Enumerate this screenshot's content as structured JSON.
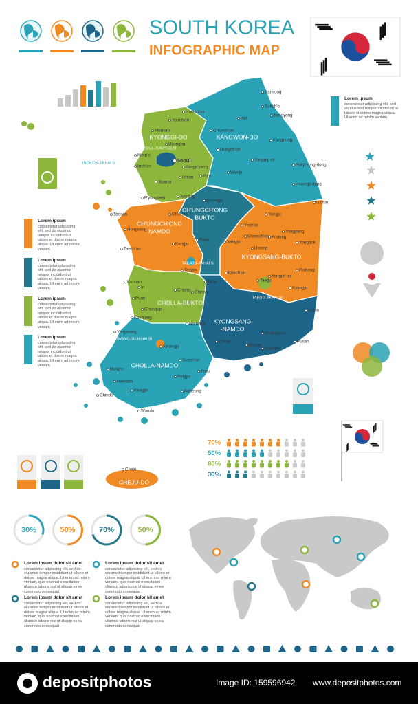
{
  "header": {
    "title": "SOUTH KOREA",
    "subtitle": "INFOGRAPHIC MAP"
  },
  "map": {
    "provinces": [
      {
        "lines": [
          "KYONGGI-DO"
        ]
      },
      {
        "lines": [
          "KANGWON-DO"
        ]
      },
      {
        "lines": [
          "CH'UNGCH'ONG",
          "BUKTO"
        ]
      },
      {
        "lines": [
          "CH'UNGCH'ONG",
          "NAMDO"
        ]
      },
      {
        "lines": [
          "KYONGSANG-BUKTO"
        ]
      },
      {
        "lines": [
          "CHOLLA-BUKTO"
        ]
      },
      {
        "lines": [
          "KYONGSANG",
          "-NAMDO"
        ]
      },
      {
        "lines": [
          "CHOLLA-NAMDO"
        ]
      },
      {
        "lines": [
          "CHEJU-DO"
        ]
      }
    ],
    "special_cities": [
      "SEOUL-TUKPYOLSI",
      "INCH'ON-JIKHAI SI",
      "TAEJON-JIKHAI SI",
      "TAEGU-JIKHAI SI",
      "KWANGJU-JIKHAI SI",
      "PUSAN-JIKHAI SI"
    ],
    "cities": [
      "Kansong",
      "Sokch'o",
      "Inje",
      "Hwach'on",
      "Yonch'on",
      "Yangyang",
      "Ch'unch'on",
      "Kangnung",
      "Munsan",
      "Uijongbu",
      "Hongch'on",
      "Yoryang-ni",
      "Seoul",
      "Yangp'yong",
      "Wonju",
      "Pukp'yong-dong",
      "Inch'on",
      "Kimp'o",
      "Ich'on",
      "Suwon",
      "Yoju",
      "Hwangji-dong",
      "Ulchin",
      "P'yongtaek",
      "Ansong",
      "Ch'ongju",
      "Ch'onan",
      "Taesan",
      "Hongsong",
      "Yongju",
      "Yech'on",
      "Yongyang",
      "Chomch'on",
      "Andong",
      "Kongju",
      "Poun",
      "Sangju",
      "Uisong",
      "Yongdok",
      "Taech'on",
      "Taejon",
      "Kimch'on",
      "Yongch'on",
      "P'ohang",
      "Kunsan",
      "Iri",
      "Chonju",
      "Muju",
      "Taegu",
      "Kyongju",
      "Puan",
      "Chinan",
      "Ulsan",
      "Chongup",
      "Koch'ang",
      "Namwon",
      "Ch'angwon",
      "Masan",
      "Chinhae",
      "Pusan",
      "Yongwang",
      "Kwangju",
      "Chinju",
      "Sunch'on",
      "Mokp'o",
      "Yosu",
      "Haenam",
      "Polgyo",
      "Kangjin",
      "Koheung",
      "Chindo",
      "Wando",
      "Cheju"
    ]
  },
  "side_notes": [
    {
      "title": "Lorem ipsum",
      "body": "consectetur adipiscing elit, sed do eiusmod tempor incididunt ut labore et dolore magna aliqua. Ut enim ad minim veniam"
    },
    {
      "title": "Lorem ipsum",
      "body": "consectetur adipiscing elit, sed do eiusmod tempor incididunt ut labore et dolore magna aliqua. Ut enim ad minim veniam"
    },
    {
      "title": "Lorem ipsum",
      "body": "consectetur adipiscing elit, sed do eiusmod tempor incididunt ut labore et dolore magna aliqua. Ut enim ad minim veniam"
    },
    {
      "title": "Lorem ipsum",
      "body": "consectetur adipiscing elit, sed do eiusmod tempor incididunt ut labore et dolore magna aliqua. Ut enim ad minim veniam"
    },
    {
      "title": "Lorem ipsum",
      "body": "consectetur adipiscing elit, sed do eiusmod tempor incididunt ut labore et dolore magna aliqua. Ut enim ad minim veniam"
    }
  ],
  "population_rows": [
    {
      "value": 70,
      "label": "70%"
    },
    {
      "value": 50,
      "label": "50%"
    },
    {
      "value": 80,
      "label": "80%"
    },
    {
      "value": 30,
      "label": "30%"
    }
  ],
  "gauges": [
    {
      "value": 30,
      "label": "30%"
    },
    {
      "value": 50,
      "label": "50%"
    },
    {
      "value": 70,
      "label": "70%"
    },
    {
      "value": 50,
      "label": "50%"
    }
  ],
  "notes": [
    {
      "title": "Lorem ipsum dolor sit amet",
      "body": "consectetur adipiscing elit, sed do eiusmod tempor incididunt ut labore et dolore magna aliqua. Ut enim ad minim veniam, quis nostrud exercitation ullamco laboris nisi ut aliquip ex ea commodo consequat"
    },
    {
      "title": "Lorem ipsum dolor sit amet",
      "body": "consectetur adipiscing elit, sed do eiusmod tempor incididunt ut labore et dolore magna aliqua. Ut enim ad minim veniam, quis nostrud exercitation ullamco laboris nisi ut aliquip ex ea commodo consequat"
    },
    {
      "title": "Lorem ipsum dolor sit amet",
      "body": "consectetur adipiscing elit, sed do eiusmod tempor incididunt ut labore et dolore magna aliqua. Ut enim ad minim veniam, quis nostrud exercitation ullamco laboris nisi ut aliquip ex ea commodo consequat"
    },
    {
      "title": "Lorem ipsum dolor sit amet",
      "body": "consectetur adipiscing elit, sed do eiusmod tempor incididunt ut labore et dolore magna aliqua. Ut enim ad minim veniam, quis nostrud exercitation ullamco laboris nisi ut aliquip ex ea commodo consequat"
    }
  ],
  "footer": {
    "brand": "depositphotos",
    "image_id": "Image ID: 159596942",
    "url": "www.depositphotos.com"
  }
}
